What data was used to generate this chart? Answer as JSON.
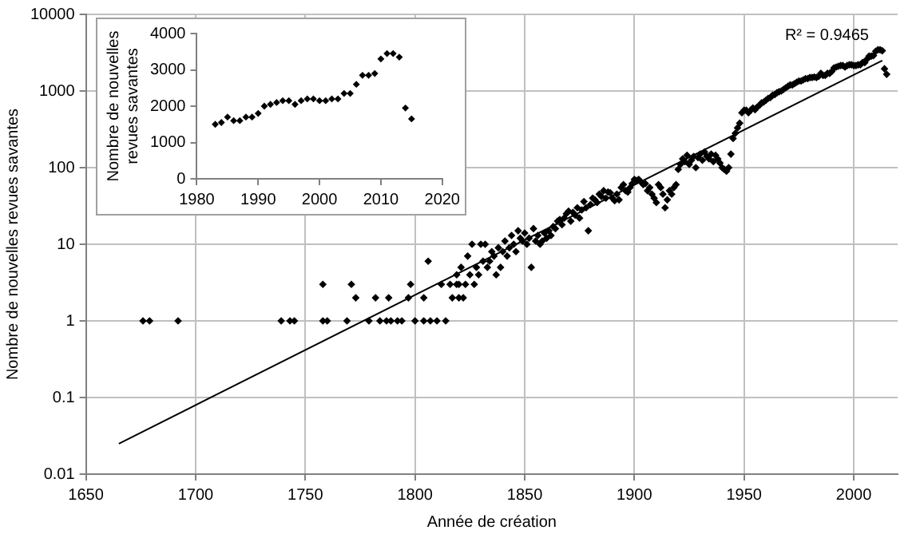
{
  "chart_data": [
    {
      "type": "scatter",
      "xlabel": "Année de création",
      "ylabel": "Nombre de nouvelles revues savantes",
      "log": "y",
      "xlim": [
        1650,
        2020
      ],
      "xticks": [
        1650,
        1700,
        1750,
        1800,
        1850,
        1900,
        1950,
        2000
      ],
      "ylim": [
        0.01,
        10000
      ],
      "yticks": [
        0.01,
        0.1,
        1,
        10,
        100,
        1000,
        10000
      ],
      "grid": true,
      "legend": false,
      "annotations": [
        "R² = 0.9465"
      ],
      "series": [
        {
          "marker": "diamond",
          "color": "#000000",
          "x": [
            1676,
            1679,
            1692,
            1739,
            1743,
            1745,
            1758,
            1760,
            1758,
            1769,
            1771,
            1773,
            1779,
            1782,
            1784,
            1787,
            1788,
            1789,
            1792,
            1794,
            1797,
            1798,
            1800,
            1804,
            1804,
            1806,
            1807,
            1810,
            1812,
            1814,
            1816,
            1817,
            1819,
            1819,
            1820,
            1820,
            1821,
            1822,
            1823,
            1824,
            1825,
            1826,
            1827,
            1828,
            1829,
            1830,
            1831,
            1832,
            1833,
            1834,
            1835,
            1836,
            1837,
            1838,
            1839,
            1840,
            1841,
            1842,
            1843,
            1844,
            1845,
            1846,
            1847,
            1848,
            1849,
            1850,
            1851,
            1852,
            1853,
            1854,
            1855,
            1856,
            1857,
            1858,
            1859,
            1860,
            1861,
            1862,
            1863,
            1864,
            1865,
            1866,
            1867,
            1868,
            1869,
            1870,
            1871,
            1872,
            1873,
            1874,
            1875,
            1876,
            1877,
            1878,
            1879,
            1880,
            1881,
            1882,
            1883,
            1884,
            1885,
            1886,
            1887,
            1888,
            1889,
            1890,
            1891,
            1892,
            1893,
            1894,
            1895,
            1896,
            1897,
            1898,
            1899,
            1900,
            1901,
            1902,
            1903,
            1904,
            1905,
            1906,
            1907,
            1908,
            1909,
            1910,
            1911,
            1912,
            1913,
            1914,
            1915,
            1916,
            1917,
            1918,
            1919,
            1920,
            1921,
            1922,
            1923,
            1924,
            1925,
            1926,
            1927,
            1928,
            1929,
            1930,
            1931,
            1932,
            1933,
            1934,
            1935,
            1936,
            1937,
            1938,
            1939,
            1940,
            1941,
            1942,
            1943,
            1944,
            1945,
            1946,
            1947,
            1948,
            1949,
            1950,
            1951,
            1952,
            1953,
            1954,
            1955,
            1956,
            1957,
            1958,
            1959,
            1960,
            1961,
            1962,
            1963,
            1964,
            1965,
            1966,
            1967,
            1968,
            1969,
            1970,
            1971,
            1972,
            1973,
            1974,
            1975,
            1976,
            1977,
            1978,
            1979,
            1980,
            1981,
            1982,
            1983,
            1984,
            1985,
            1986,
            1987,
            1988,
            1989,
            1990,
            1991,
            1992,
            1993,
            1994,
            1995,
            1996,
            1997,
            1998,
            1999,
            2000,
            2001,
            2002,
            2003,
            2004,
            2005,
            2006,
            2007,
            2008,
            2009,
            2010,
            2011,
            2012,
            2013,
            2014,
            2015
          ],
          "values": [
            1,
            1,
            1,
            1,
            1,
            1,
            1,
            1,
            3,
            1,
            3,
            2,
            1,
            2,
            1,
            1,
            2,
            1,
            1,
            1,
            2,
            3,
            1,
            1,
            2,
            6,
            1,
            1,
            3,
            1,
            3,
            2,
            4,
            3,
            3,
            2,
            5,
            2,
            3,
            7,
            4,
            10,
            3,
            5,
            4,
            10,
            6,
            10,
            5,
            6,
            8,
            7,
            4,
            9,
            5,
            8,
            11,
            7,
            9,
            13,
            10,
            8,
            15,
            12,
            11,
            14,
            10,
            12,
            5,
            16,
            11,
            13,
            10,
            11,
            14,
            12,
            15,
            13,
            17,
            16,
            20,
            21,
            18,
            22,
            25,
            27,
            20,
            26,
            24,
            30,
            22,
            28,
            36,
            30,
            15,
            33,
            40,
            38,
            35,
            45,
            42,
            50,
            40,
            48,
            47,
            40,
            37,
            45,
            38,
            55,
            60,
            50,
            48,
            55,
            62,
            70,
            68,
            70,
            65,
            60,
            62,
            50,
            55,
            45,
            40,
            35,
            60,
            55,
            45,
            30,
            38,
            50,
            45,
            55,
            60,
            95,
            110,
            130,
            120,
            145,
            110,
            125,
            140,
            100,
            135,
            150,
            125,
            160,
            140,
            130,
            150,
            120,
            145,
            130,
            115,
            100,
            95,
            90,
            100,
            150,
            240,
            280,
            330,
            380,
            520,
            560,
            560,
            520,
            560,
            600,
            570,
            620,
            650,
            700,
            720,
            760,
            800,
            820,
            880,
            900,
            950,
            980,
            1000,
            1050,
            1100,
            1150,
            1200,
            1200,
            1250,
            1300,
            1350,
            1350,
            1400,
            1450,
            1450,
            1500,
            1500,
            1520,
            1500,
            1550,
            1700,
            1600,
            1600,
            1700,
            1700,
            1800,
            2000,
            2050,
            2100,
            2150,
            2150,
            2050,
            2150,
            2200,
            2200,
            2150,
            2150,
            2200,
            2200,
            2350,
            2350,
            2600,
            2850,
            2850,
            2900,
            3300,
            3450,
            3450,
            3350,
            1950,
            1650
          ]
        },
        {
          "type": "line",
          "marker": "none",
          "color": "#000000",
          "x": [
            1665,
            2013
          ],
          "values": [
            0.025,
            2500
          ]
        }
      ]
    },
    {
      "type": "scatter",
      "ylabel": "Nombre de nouvelles revues savantes",
      "xlim": [
        1980,
        2020
      ],
      "xticks": [
        1980,
        1990,
        2000,
        2010,
        2020
      ],
      "ylim": [
        0,
        4000
      ],
      "yticks": [
        0,
        1000,
        2000,
        3000,
        4000
      ],
      "legend": false,
      "series": [
        {
          "marker": "diamond",
          "color": "#000000",
          "x": [
            1983,
            1984,
            1985,
            1986,
            1987,
            1988,
            1989,
            1990,
            1991,
            1992,
            1993,
            1994,
            1995,
            1996,
            1997,
            1998,
            1999,
            2000,
            2001,
            2002,
            2003,
            2004,
            2005,
            2006,
            2007,
            2008,
            2009,
            2010,
            2011,
            2012,
            2013,
            2014,
            2015
          ],
          "values": [
            1500,
            1550,
            1700,
            1600,
            1600,
            1700,
            1700,
            1800,
            2000,
            2050,
            2100,
            2150,
            2150,
            2050,
            2150,
            2200,
            2200,
            2150,
            2150,
            2200,
            2200,
            2350,
            2350,
            2600,
            2850,
            2850,
            2900,
            3300,
            3450,
            3450,
            3350,
            1950,
            1650
          ]
        }
      ]
    }
  ]
}
